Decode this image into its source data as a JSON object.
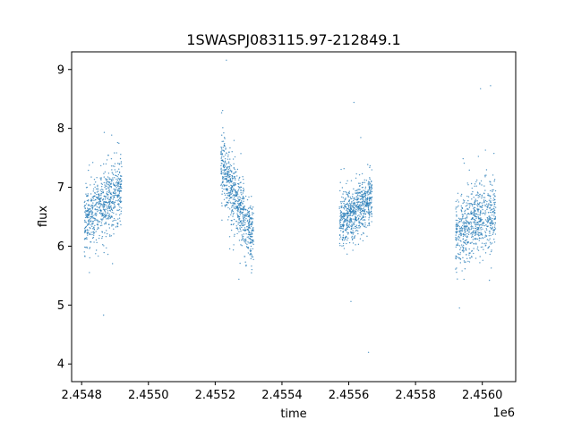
{
  "chart_data": {
    "type": "scatter",
    "title": "1SWASPJ083115.97-212849.1",
    "xlabel": "time",
    "ylabel": "flux",
    "x_offset_label": "1e6",
    "xlim": [
      2454770,
      2456100
    ],
    "ylim": [
      3.7,
      9.3
    ],
    "x_ticks": [
      2454800,
      2455000,
      2455200,
      2455400,
      2455600,
      2455800,
      2456000
    ],
    "x_tick_labels": [
      "2.4548",
      "2.4550",
      "2.4552",
      "2.4554",
      "2.4556",
      "2.4558",
      "2.4560"
    ],
    "y_ticks": [
      4,
      5,
      6,
      7,
      8,
      9
    ],
    "y_tick_labels": [
      "4",
      "5",
      "6",
      "7",
      "8",
      "9"
    ],
    "grid": false,
    "marker_color": "#1f77b4",
    "series": [
      {
        "segments": [
          {
            "x_start": 2454808,
            "x_end": 2454920,
            "mean_start": 6.4,
            "mean_end": 7.0,
            "spread": 0.55
          },
          {
            "x_start": 2455217,
            "x_end": 2455315,
            "mean_start": 7.4,
            "mean_end": 6.1,
            "spread": 0.55
          },
          {
            "x_start": 2455572,
            "x_end": 2455670,
            "mean_start": 6.4,
            "mean_end": 6.8,
            "spread": 0.45
          },
          {
            "x_start": 2455920,
            "x_end": 2456040,
            "mean_start": 6.2,
            "mean_end": 6.6,
            "spread": 0.6
          }
        ]
      }
    ]
  }
}
